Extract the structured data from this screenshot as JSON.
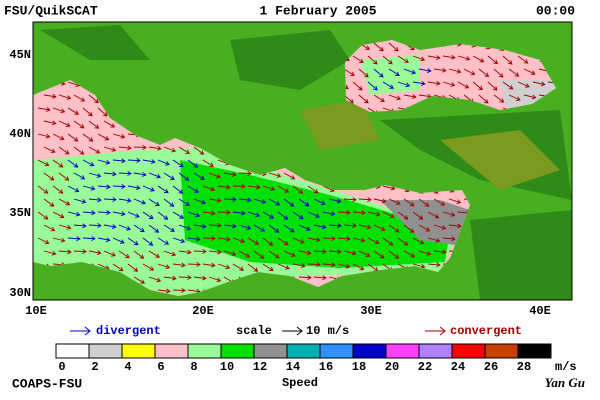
{
  "header": {
    "left": "FSU/QuikSCAT",
    "center": "1 February 2005",
    "right": "00:00"
  },
  "axes": {
    "lat_labels": [
      "45N",
      "40N",
      "35N",
      "30N"
    ],
    "lon_labels": [
      "10E",
      "20E",
      "30E",
      "40E"
    ]
  },
  "legend": {
    "divergent": "divergent",
    "scale": "scale",
    "scale_value": "10 m/s",
    "convergent": "convergent",
    "divergent_color": "#0000c0",
    "convergent_color": "#a00000"
  },
  "colorbar": {
    "ticks": [
      0,
      2,
      4,
      6,
      8,
      10,
      12,
      14,
      16,
      18,
      20,
      22,
      24,
      26,
      28
    ],
    "unit": "m/s",
    "title": "Speed",
    "colors": [
      "#ffffff",
      "#d0d0d0",
      "#ffff00",
      "#ffc0c8",
      "#98fb98",
      "#00e000",
      "#909090",
      "#00b0b0",
      "#3090ff",
      "#0000c8",
      "#ff40ff",
      "#b080ff",
      "#ff0000",
      "#c84000",
      "#000000"
    ]
  },
  "footer": {
    "left": "COAPS-FSU",
    "right": "Yan Gu"
  }
}
